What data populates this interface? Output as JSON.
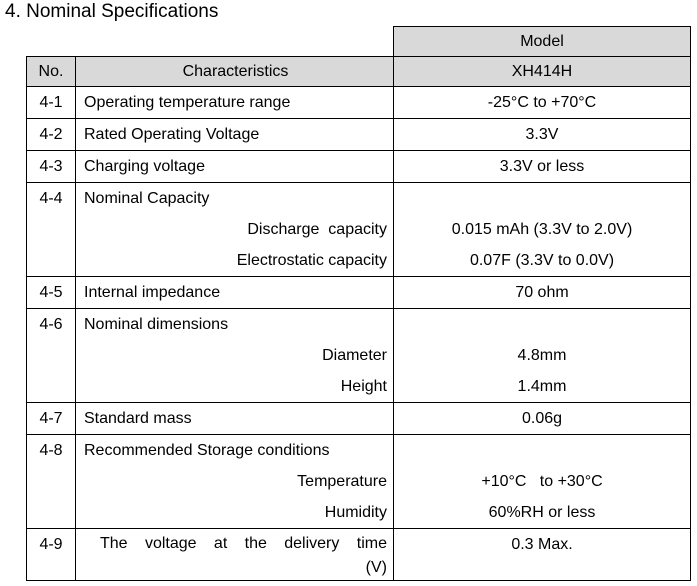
{
  "title": "4. Nominal Specifications",
  "header": {
    "model": "Model",
    "no": "No.",
    "characteristics": "Characteristics",
    "model_name": "XH414H"
  },
  "rows": [
    {
      "no": "4-1",
      "name": "Operating temperature range",
      "value": "-25°C to +70°C"
    },
    {
      "no": "4-2",
      "name": "Rated Operating Voltage",
      "value": "3.3V"
    },
    {
      "no": "4-3",
      "name": "Charging voltage",
      "value": "3.3V or less"
    },
    {
      "no": "4-4",
      "name": "Nominal Capacity",
      "items": [
        {
          "name": "Discharge  capacity",
          "value": "0.015 mAh (3.3V to 2.0V)"
        },
        {
          "name": "Electrostatic capacity",
          "value": "0.07F (3.3V to 0.0V)"
        }
      ]
    },
    {
      "no": "4-5",
      "name": "Internal impedance",
      "value": "70 ohm"
    },
    {
      "no": "4-6",
      "name": "Nominal dimensions",
      "items": [
        {
          "name": "Diameter",
          "value": "4.8mm"
        },
        {
          "name": "Height",
          "value": "1.4mm"
        }
      ]
    },
    {
      "no": "4-7",
      "name": "Standard mass",
      "value": "0.06g"
    },
    {
      "no": "4-8",
      "name": "Recommended Storage conditions",
      "items": [
        {
          "name": "Temperature",
          "value": "+10°C   to +30°C"
        },
        {
          "name": "Humidity",
          "value": "60%RH or less"
        }
      ]
    },
    {
      "no": "4-9",
      "name": "The voltage at the delivery time",
      "unit": "(V)",
      "value": "0.3 Max."
    }
  ]
}
